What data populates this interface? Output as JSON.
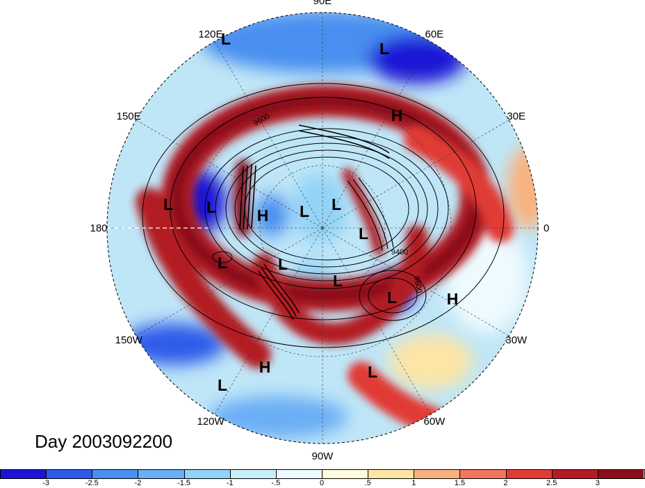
{
  "title": "Day 2003092200",
  "longitude_labels": [
    {
      "text": "90E",
      "angle": 90
    },
    {
      "text": "60E",
      "angle": 60
    },
    {
      "text": "30E",
      "angle": 30
    },
    {
      "text": "0",
      "angle": 0
    },
    {
      "text": "30W",
      "angle": -30
    },
    {
      "text": "60W",
      "angle": -60
    },
    {
      "text": "90W",
      "angle": -90
    },
    {
      "text": "120W",
      "angle": -120
    },
    {
      "text": "150W",
      "angle": -150
    },
    {
      "text": "180",
      "angle": 180
    },
    {
      "text": "150E",
      "angle": 150
    },
    {
      "text": "120E",
      "angle": 120
    }
  ],
  "pressure_systems": [
    "L",
    "L",
    "H",
    "L",
    "L",
    "H",
    "L",
    "L",
    "L",
    "L",
    "L",
    "L",
    "L",
    "H",
    "L",
    "H",
    "L"
  ],
  "contour_labels": [
    "9400",
    "9600",
    "9600"
  ],
  "colorbar": {
    "ticks": [
      "-3",
      "-2.5",
      "-2",
      "-1.5",
      "-1",
      "-.5",
      "0",
      ".5",
      "1",
      "1.5",
      "2",
      "2.5",
      "3"
    ],
    "colors": [
      "#1c13d6",
      "#2f5bea",
      "#4a8ff0",
      "#6aaef5",
      "#93d3f6",
      "#c8eefa",
      "#eefaff",
      "#fffbdf",
      "#fde5a6",
      "#f9b27f",
      "#f1765e",
      "#e13b36",
      "#b31c24",
      "#8a0f1a"
    ]
  }
}
